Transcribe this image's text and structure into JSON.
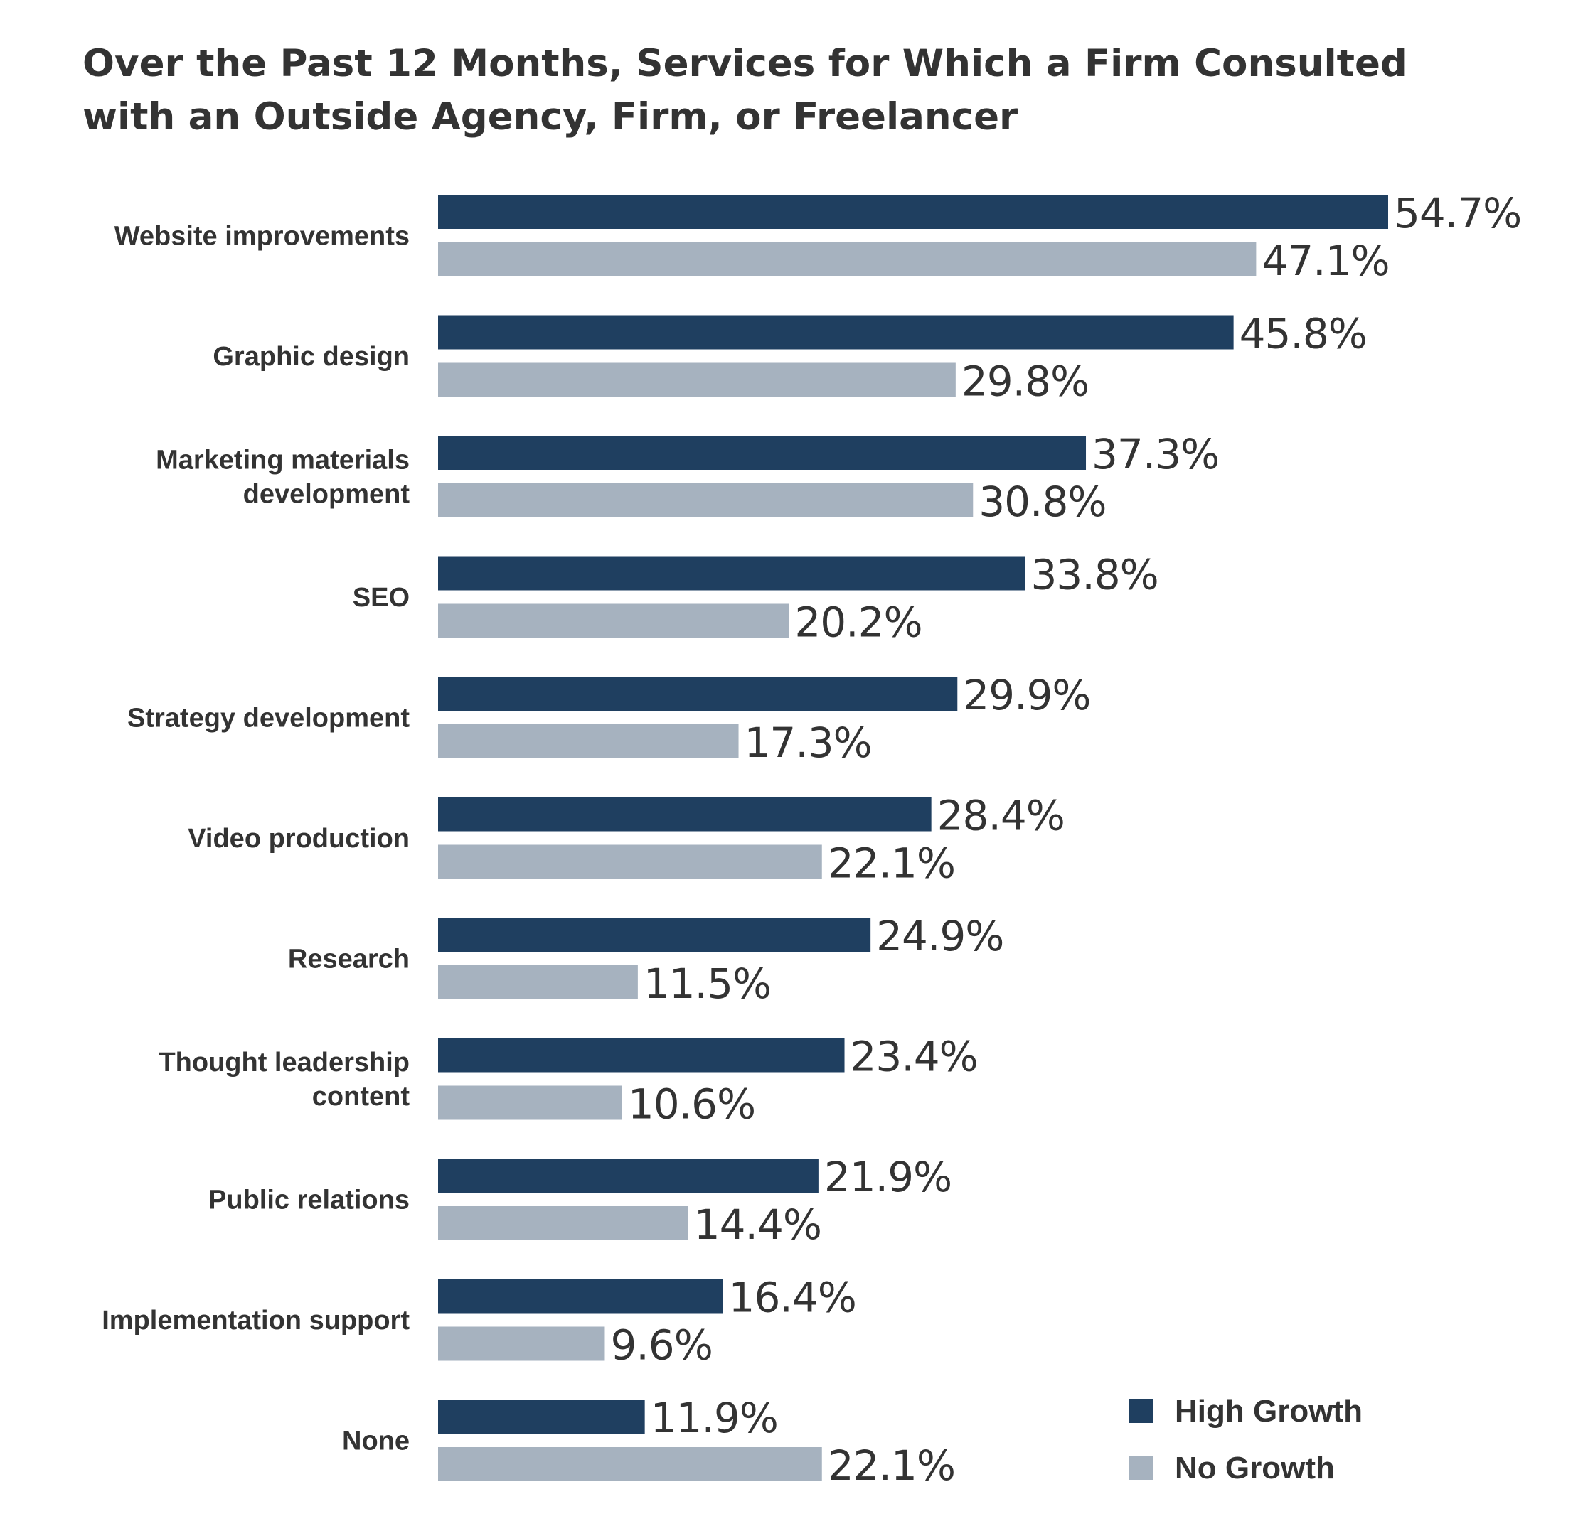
{
  "chart_data": {
    "type": "bar",
    "orientation": "horizontal",
    "title": "Over the Past 12 Months, Services for Which a Firm Consulted with an Outside Agency, Firm, or Freelancer",
    "categories": [
      [
        "Website improvements"
      ],
      [
        "Graphic design"
      ],
      [
        "Marketing materials",
        "development"
      ],
      [
        "SEO"
      ],
      [
        "Strategy development"
      ],
      [
        "Video production"
      ],
      [
        "Research"
      ],
      [
        "Thought leadership",
        "content"
      ],
      [
        "Public relations"
      ],
      [
        "Implementation support"
      ],
      [
        "None"
      ]
    ],
    "series": [
      {
        "name": "High Growth",
        "color": "#1f3f60",
        "values": [
          54.7,
          45.8,
          37.3,
          33.8,
          29.9,
          28.4,
          24.9,
          23.4,
          21.9,
          16.4,
          11.9
        ]
      },
      {
        "name": "No Growth",
        "color": "#a6b2bf",
        "values": [
          47.1,
          29.8,
          30.8,
          20.2,
          17.3,
          22.1,
          11.5,
          10.6,
          14.4,
          9.6,
          22.1
        ]
      }
    ],
    "value_suffix": "%",
    "xlim": [
      0,
      55
    ],
    "legend_position": "bottom-right",
    "grid": false
  }
}
